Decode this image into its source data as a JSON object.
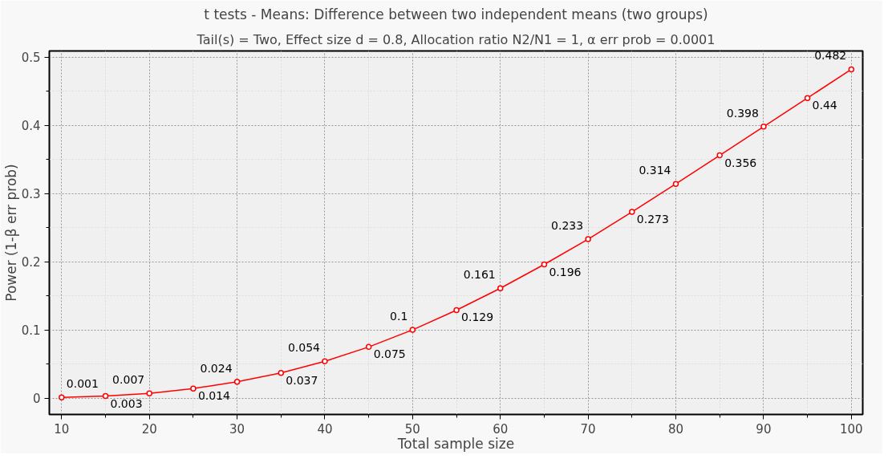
{
  "chart_data": {
    "type": "line",
    "title": "t tests - Means: Difference between two independent means (two groups)",
    "subtitle": "Tail(s) = Two, Effect size d = 0.8, Allocation ratio N2/N1 = 1, α err prob = 0.0001",
    "xlabel": "Total sample size",
    "ylabel": "Power (1-β err prob)",
    "x": [
      10,
      15,
      20,
      25,
      30,
      35,
      40,
      45,
      50,
      55,
      60,
      65,
      70,
      75,
      80,
      85,
      90,
      95,
      100
    ],
    "series": [
      {
        "color": "#ff0000",
        "values": [
          0.001,
          0.003,
          0.007,
          0.014,
          0.024,
          0.037,
          0.054,
          0.075,
          0.1,
          0.129,
          0.161,
          0.196,
          0.233,
          0.273,
          0.314,
          0.356,
          0.398,
          0.44,
          0.482
        ]
      }
    ],
    "xlim": [
      8.6,
      101.3
    ],
    "ylim": [
      -0.024,
      0.509
    ],
    "xticks": [
      10,
      20,
      30,
      40,
      50,
      60,
      70,
      80,
      90,
      100
    ],
    "yticks": [
      0,
      0.1,
      0.2,
      0.3,
      0.4,
      0.5
    ],
    "grid": true,
    "marker": "circle",
    "line_style": "solid",
    "data_labels": true
  }
}
